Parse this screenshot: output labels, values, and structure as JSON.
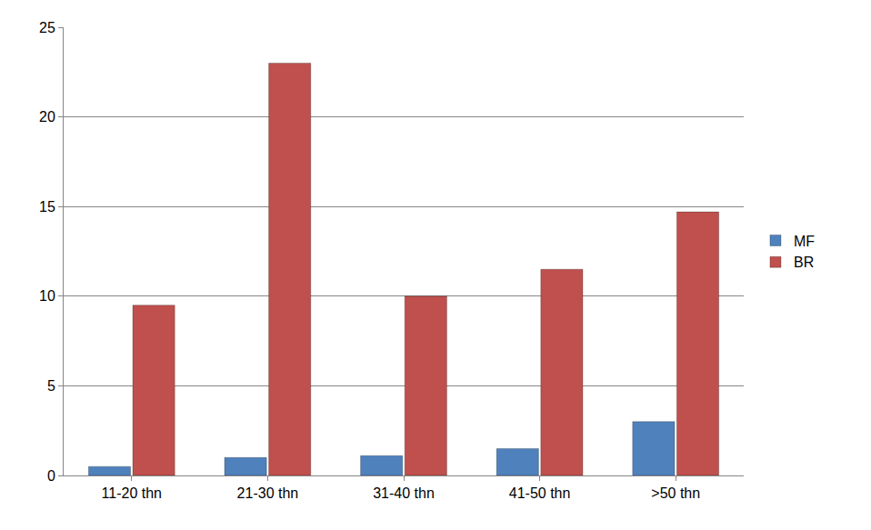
{
  "chart_data": {
    "type": "bar",
    "categories": [
      "11-20 thn",
      "21-30 thn",
      "31-40 thn",
      "41-50 thn",
      ">50 thn"
    ],
    "series": [
      {
        "name": "MF",
        "color": "#4f81bd",
        "values": [
          0.5,
          1,
          1.1,
          1.5,
          3
        ]
      },
      {
        "name": "BR",
        "color": "#c0504d",
        "values": [
          9.5,
          23,
          10,
          11.5,
          14.7
        ]
      }
    ],
    "ylim": [
      0,
      25
    ],
    "yticks": [
      0,
      5,
      10,
      15,
      20,
      25
    ],
    "grid": true,
    "legend": "right"
  }
}
